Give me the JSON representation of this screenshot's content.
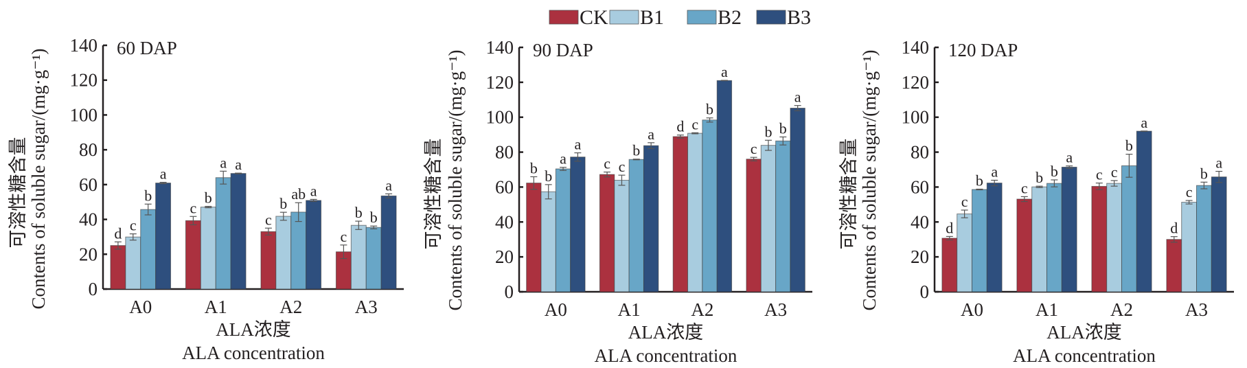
{
  "legend": {
    "items": [
      {
        "label": "CK",
        "color": "#AB313F"
      },
      {
        "label": "B1",
        "color": "#A8CCDF"
      },
      {
        "label": "B2",
        "color": "#68A6C7"
      },
      {
        "label": "B3",
        "color": "#2E4F7E"
      }
    ]
  },
  "chart_data": [
    {
      "type": "bar",
      "title": "60 DAP",
      "xlabel_cn": "ALA浓度",
      "xlabel": "ALA concentration",
      "ylabel_cn": "可溶性糖含量",
      "ylabel": "Contents of soluble sugar/(mg·g⁻¹)",
      "ylim": [
        0,
        140
      ],
      "yticks": [
        0,
        20,
        40,
        60,
        80,
        100,
        120,
        140
      ],
      "categories": [
        "A0",
        "A1",
        "A2",
        "A3"
      ],
      "series": [
        {
          "name": "CK",
          "values": [
            25.0,
            39.3,
            33.0,
            21.4
          ],
          "errors": [
            2.1,
            2.4,
            2.0,
            3.9
          ],
          "letters": [
            "d",
            "c",
            "c",
            "c"
          ]
        },
        {
          "name": "B1",
          "values": [
            29.9,
            47.1,
            41.8,
            36.6
          ],
          "errors": [
            1.8,
            0.4,
            2.3,
            2.4
          ],
          "letters": [
            "c",
            "b",
            "b",
            "b"
          ]
        },
        {
          "name": "B2",
          "values": [
            45.7,
            64.0,
            44.2,
            35.4
          ],
          "errors": [
            3.1,
            3.7,
            5.4,
            0.8
          ],
          "letters": [
            "b",
            "a",
            "ab",
            "b"
          ]
        },
        {
          "name": "B3",
          "values": [
            60.9,
            66.4,
            50.9,
            53.5
          ],
          "errors": [
            0.4,
            0.2,
            0.6,
            1.2
          ],
          "letters": [
            "a",
            "a",
            "a",
            "a"
          ]
        }
      ]
    },
    {
      "type": "bar",
      "title": "90 DAP",
      "xlabel_cn": "ALA浓度",
      "xlabel": "ALA concentration",
      "ylabel_cn": "可溶性糖含量",
      "ylabel": "Contents of soluble sugar/(mg·g⁻¹)",
      "ylim": [
        0,
        140
      ],
      "yticks": [
        0,
        20,
        40,
        60,
        80,
        100,
        120,
        140
      ],
      "categories": [
        "A0",
        "A1",
        "A2",
        "A3"
      ],
      "series": [
        {
          "name": "CK",
          "values": [
            62.3,
            67.2,
            88.9,
            76.0
          ],
          "errors": [
            3.6,
            1.4,
            0.9,
            1.0
          ],
          "letters": [
            "b",
            "c",
            "d",
            "c"
          ]
        },
        {
          "name": "B1",
          "values": [
            57.3,
            63.9,
            90.8,
            83.9
          ],
          "errors": [
            4.1,
            2.9,
            0.3,
            2.9
          ],
          "letters": [
            "b",
            "c",
            "c",
            "b"
          ]
        },
        {
          "name": "B2",
          "values": [
            70.4,
            75.8,
            98.4,
            86.4
          ],
          "errors": [
            0.9,
            0.2,
            1.2,
            2.3
          ],
          "letters": [
            "a",
            "b",
            "b",
            "b"
          ]
        },
        {
          "name": "B3",
          "values": [
            77.2,
            83.7,
            121.0,
            105.2
          ],
          "errors": [
            2.4,
            1.7,
            0.1,
            1.5
          ],
          "letters": [
            "a",
            "a",
            "a",
            "a"
          ]
        }
      ]
    },
    {
      "type": "bar",
      "title": "120 DAP",
      "xlabel_cn": "ALA浓度",
      "xlabel": "ALA concentration",
      "ylabel_cn": "可溶性糖含量",
      "ylabel": "Contents of soluble sugar/(mg·g⁻¹)",
      "ylim": [
        0,
        140
      ],
      "yticks": [
        0,
        20,
        40,
        60,
        80,
        100,
        120,
        140
      ],
      "categories": [
        "A0",
        "A1",
        "A2",
        "A3"
      ],
      "series": [
        {
          "name": "CK",
          "values": [
            30.7,
            53.1,
            60.4,
            30.0
          ],
          "errors": [
            1.0,
            1.4,
            1.9,
            1.6
          ],
          "letters": [
            "d",
            "c",
            "c",
            "d"
          ]
        },
        {
          "name": "B1",
          "values": [
            44.6,
            60.1,
            62.1,
            51.3
          ],
          "errors": [
            2.2,
            0.4,
            1.6,
            1.0
          ],
          "letters": [
            "c",
            "b",
            "c",
            "c"
          ]
        },
        {
          "name": "B2",
          "values": [
            58.6,
            62.1,
            72.2,
            60.9
          ],
          "errors": [
            0.2,
            2.0,
            6.6,
            1.9
          ],
          "letters": [
            "b",
            "b",
            "b",
            "b"
          ]
        },
        {
          "name": "B3",
          "values": [
            62.3,
            71.4,
            92.0,
            65.8
          ],
          "errors": [
            1.6,
            0.7,
            0.1,
            3.2
          ],
          "letters": [
            "a",
            "a",
            "a",
            "a"
          ]
        }
      ]
    }
  ]
}
